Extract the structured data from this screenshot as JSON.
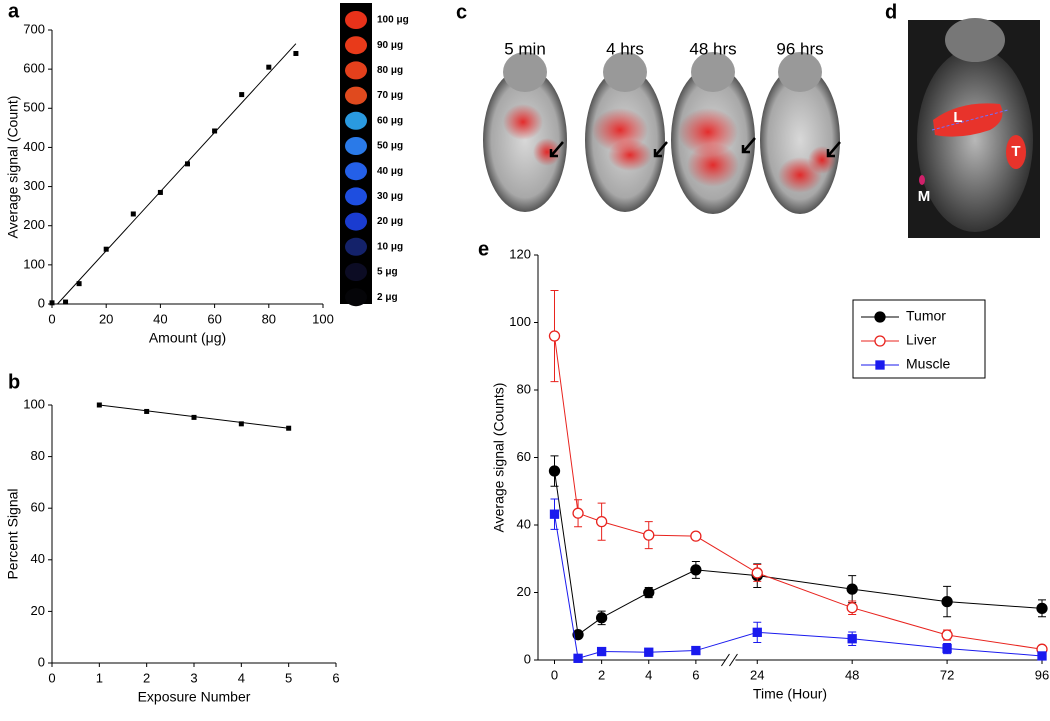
{
  "chart_data": [
    {
      "type": "scatter",
      "panel": "a",
      "xlabel": "Amount (μg)",
      "ylabel": "Average signal (Count)",
      "x": [
        0,
        5,
        10,
        20,
        30,
        40,
        50,
        60,
        70,
        80,
        90
      ],
      "values": [
        3,
        5,
        52,
        140,
        230,
        285,
        358,
        442,
        535,
        605,
        640
      ],
      "fit": {
        "x": [
          2,
          90
        ],
        "values": [
          0,
          665
        ]
      },
      "color": "#000000",
      "xlim": [
        0,
        100
      ],
      "xticks": [
        0,
        20,
        40,
        60,
        80,
        100
      ],
      "ylim": [
        0,
        700
      ],
      "yticks": [
        0,
        100,
        200,
        300,
        400,
        500,
        600,
        700
      ],
      "inset": {
        "labels": [
          "100 μg",
          "90 μg",
          "80 μg",
          "70 μg",
          "60 μg",
          "50 μg",
          "40 μg",
          "30 μg",
          "20 μg",
          "10 μg",
          "5 μg",
          "2 μg"
        ],
        "spot_colors": [
          "#e8321a",
          "#e83a1a",
          "#e4401c",
          "#e04a1e",
          "#2a9ae0",
          "#2a7ae8",
          "#2460e8",
          "#1e4ee0",
          "#1a3cd0",
          "#14226a",
          "#0c0c24",
          "#050508"
        ]
      }
    },
    {
      "type": "scatter",
      "panel": "b",
      "xlabel": "Exposure Number",
      "ylabel": "Percent Signal",
      "x": [
        1,
        2,
        3,
        4,
        5
      ],
      "values": [
        100,
        97.5,
        95.2,
        92.7,
        91
      ],
      "fit": {
        "x": [
          1,
          5
        ],
        "values": [
          100,
          91
        ]
      },
      "color": "#000000",
      "xlim": [
        0,
        6
      ],
      "xticks": [
        0,
        1,
        2,
        3,
        4,
        5,
        6
      ],
      "ylim": [
        0,
        100
      ],
      "yticks": [
        0,
        20,
        40,
        60,
        80,
        100
      ]
    },
    {
      "type": "line",
      "panel": "e",
      "xlabel": "Time (Hour)",
      "ylabel": "Average signal (Counts)",
      "x": [
        0,
        1,
        2,
        4,
        6,
        24,
        48,
        72,
        96
      ],
      "xlim": [
        -0.7,
        96
      ],
      "xbreak": [
        7,
        20
      ],
      "xticks": [
        0,
        2,
        4,
        6,
        24,
        48,
        72,
        96
      ],
      "ylim": [
        0,
        120
      ],
      "yticks": [
        0,
        20,
        40,
        60,
        80,
        100,
        120
      ],
      "series": [
        {
          "name": "Tumor",
          "color": "#000000",
          "marker": "circle",
          "filled": true,
          "values": [
            56,
            7.5,
            12.5,
            20,
            26.7,
            25,
            21,
            17.3,
            15.3
          ],
          "errors": [
            4.5,
            1,
            2,
            1.5,
            2.5,
            3.5,
            4,
            4.5,
            2.5
          ]
        },
        {
          "name": "Liver",
          "color": "#e8231e",
          "marker": "circle",
          "filled": false,
          "values": [
            96,
            43.5,
            41,
            37,
            36.7,
            25.8,
            15.5,
            7.4,
            3.2
          ],
          "errors": [
            13.5,
            4,
            5.5,
            4,
            1,
            2.5,
            2,
            1.5,
            1
          ]
        },
        {
          "name": "Muscle",
          "color": "#1a1aee",
          "marker": "square",
          "filled": true,
          "values": [
            43.2,
            0.5,
            2.5,
            2.3,
            2.8,
            8.2,
            6.3,
            3.4,
            1.2
          ],
          "errors": [
            4.5,
            0.5,
            0.5,
            0.5,
            0.5,
            3,
            2,
            1.5,
            1
          ]
        }
      ]
    }
  ],
  "panel_c": {
    "label": "c",
    "times": [
      "5 min",
      "4 hrs",
      "48 hrs",
      "96 hrs"
    ]
  },
  "panel_d": {
    "label": "d",
    "organs": [
      "L",
      "T",
      "M"
    ]
  }
}
